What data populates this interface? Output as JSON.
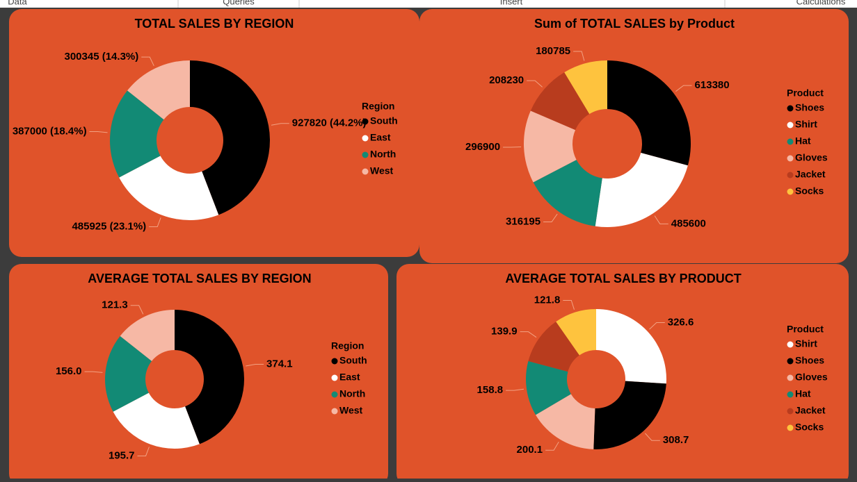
{
  "ribbon": [
    "Data",
    "Queries",
    "Insert",
    "Calculations"
  ],
  "chart_data": [
    {
      "type": "donut",
      "title": "TOTAL SALES BY REGION",
      "legend_title": "Region",
      "categories": [
        "South",
        "East",
        "North",
        "West"
      ],
      "values": [
        927820,
        485925,
        387000,
        300345
      ],
      "value_labels": [
        "927820 (44.2%)",
        "485925 (23.1%)",
        "387000 (18.4%)",
        "300345 (14.3%)"
      ],
      "colors": [
        "#000000",
        "#ffffff",
        "#128a75",
        "#f6b8a5"
      ]
    },
    {
      "type": "donut",
      "title": "Sum of TOTAL SALES by Product",
      "legend_title": "Product",
      "categories": [
        "Shoes",
        "Shirt",
        "Hat",
        "Gloves",
        "Jacket",
        "Socks"
      ],
      "values": [
        613380,
        485600,
        316195,
        296900,
        208230,
        180785
      ],
      "colors": [
        "#000000",
        "#ffffff",
        "#128a75",
        "#f6b8a5",
        "#b83c1e",
        "#fec33e"
      ]
    },
    {
      "type": "donut",
      "title": "AVERAGE TOTAL SALES BY REGION",
      "legend_title": "Region",
      "categories": [
        "South",
        "East",
        "North",
        "West"
      ],
      "values": [
        374.1,
        195.7,
        156.0,
        121.3
      ],
      "value_labels": [
        "374.1",
        "195.7",
        "156.0",
        "121.3"
      ],
      "colors": [
        "#000000",
        "#ffffff",
        "#128a75",
        "#f6b8a5"
      ]
    },
    {
      "type": "donut",
      "title": "AVERAGE TOTAL SALES BY PRODUCT",
      "legend_title": "Product",
      "categories": [
        "Shirt",
        "Shoes",
        "Gloves",
        "Hat",
        "Jacket",
        "Socks"
      ],
      "values": [
        326.6,
        308.7,
        200.1,
        158.8,
        139.9,
        121.8
      ],
      "value_labels": [
        "326.6",
        "308.7",
        "200.1",
        "158.8",
        "139.9",
        "121.8"
      ],
      "colors": [
        "#ffffff",
        "#000000",
        "#f6b8a5",
        "#128a75",
        "#b83c1e",
        "#fec33e"
      ]
    }
  ]
}
